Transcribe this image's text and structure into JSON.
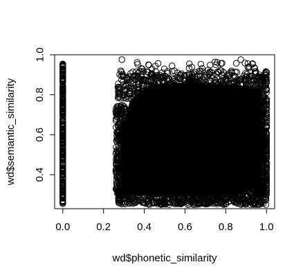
{
  "chart_data": {
    "type": "scatter",
    "title": "",
    "xlabel": "wd$phonetic_similarity",
    "ylabel": "wd$semantic_similarity",
    "xlim": [
      -0.04,
      1.04
    ],
    "ylim": [
      0.23,
      1.0
    ],
    "x_ticks": [
      0.0,
      0.2,
      0.4,
      0.6,
      0.8,
      1.0
    ],
    "x_tick_labels": [
      "0.0",
      "0.2",
      "0.4",
      "0.6",
      "0.8",
      "1.0"
    ],
    "y_ticks": [
      0.4,
      0.6,
      0.8,
      1.0
    ],
    "y_tick_labels": [
      "0.4",
      "0.6",
      "0.8",
      "1.0"
    ],
    "grid": false,
    "legend": "none",
    "marker": "open-circle",
    "point_color": "#000000",
    "series": [
      {
        "description": "vertical band at zero phonetic similarity",
        "x": [
          0.0
        ],
        "y_range": [
          0.25,
          0.96
        ]
      },
      {
        "description": "dense cloud of points",
        "x_range": [
          0.27,
          1.0
        ],
        "y_range": [
          0.25,
          0.98
        ],
        "y_core_range": [
          0.3,
          0.85
        ]
      },
      {
        "description": "vertical band at full phonetic similarity",
        "x": [
          1.0
        ],
        "y_range": [
          0.3,
          0.92
        ]
      }
    ]
  }
}
